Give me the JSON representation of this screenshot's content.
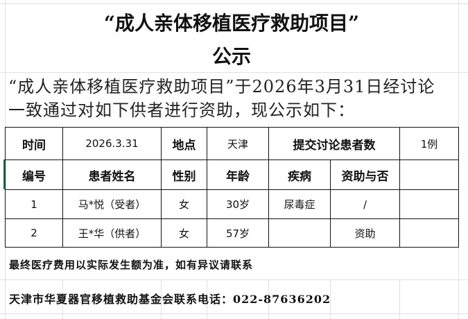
{
  "title": {
    "line1": "“成人亲体移植医疗救助项目”",
    "line2": "公示"
  },
  "intro": "“成人亲体移植医疗救助项目”于2026年3月31日经讨论一致通过对如下供者进行资助，现公示如下：",
  "info_row": {
    "time_label": "时间",
    "time_value": "2026.3.31",
    "place_label": "地点",
    "place_value": "天津",
    "count_label": "提交讨论患者数",
    "count_value": "1例"
  },
  "headers": [
    "编号",
    "患者姓名",
    "性别",
    "年龄",
    "疾病",
    "资助与否",
    ""
  ],
  "rows": [
    [
      "1",
      "马*悦（受者）",
      "女",
      "30岁",
      "尿毒症",
      "/",
      ""
    ],
    [
      "2",
      "王*华（供者）",
      "女",
      "57岁",
      "",
      "资助",
      ""
    ]
  ],
  "notes": {
    "line1": "最终医疗费用以实际发生额为准，如有异议请联系",
    "line2": "天津市华夏器官移植救助基金会联系电话：022-87636202"
  }
}
